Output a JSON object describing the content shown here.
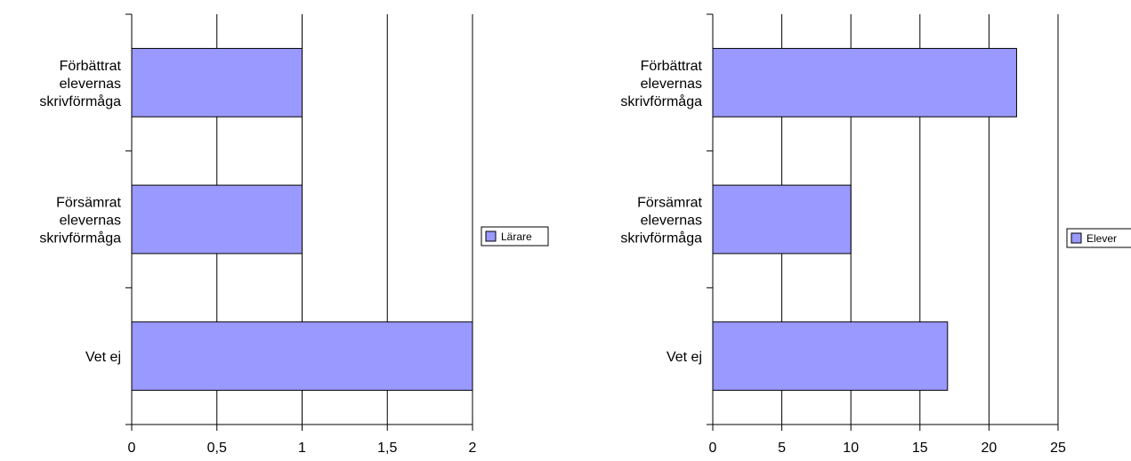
{
  "bar_color": "#9999ff",
  "chart_data": [
    {
      "type": "bar",
      "orientation": "horizontal",
      "categories": [
        "Förbättrat elevernas skrivförmåga",
        "Försämrat elevernas skrivförmåga",
        "Vet ej"
      ],
      "category_lines": [
        [
          "Förbättrat",
          "elevernas",
          "skrivförmåga"
        ],
        [
          "Försämrat",
          "elevernas",
          "skrivförmåga"
        ],
        [
          "Vet ej"
        ]
      ],
      "series": [
        {
          "name": "Lärare",
          "values": [
            1,
            1,
            2
          ]
        }
      ],
      "xlim": [
        0,
        2
      ],
      "xticks": [
        0,
        0.5,
        1,
        1.5,
        2
      ],
      "xtick_labels": [
        "0",
        "0,5",
        "1",
        "1,5",
        "2"
      ],
      "grid": true,
      "legend_position": "right"
    },
    {
      "type": "bar",
      "orientation": "horizontal",
      "categories": [
        "Förbättrat elevernas skrivförmåga",
        "Försämrat elevernas skrivförmåga",
        "Vet ej"
      ],
      "category_lines": [
        [
          "Förbättrat",
          "elevernas",
          "skrivförmåga"
        ],
        [
          "Försämrat",
          "elevernas",
          "skrivförmåga"
        ],
        [
          "Vet ej"
        ]
      ],
      "series": [
        {
          "name": "Elever",
          "values": [
            22,
            10,
            17
          ]
        }
      ],
      "xlim": [
        0,
        25
      ],
      "xticks": [
        0,
        5,
        10,
        15,
        20,
        25
      ],
      "xtick_labels": [
        "0",
        "5",
        "10",
        "15",
        "20",
        "25"
      ],
      "grid": true,
      "legend_position": "right"
    }
  ]
}
